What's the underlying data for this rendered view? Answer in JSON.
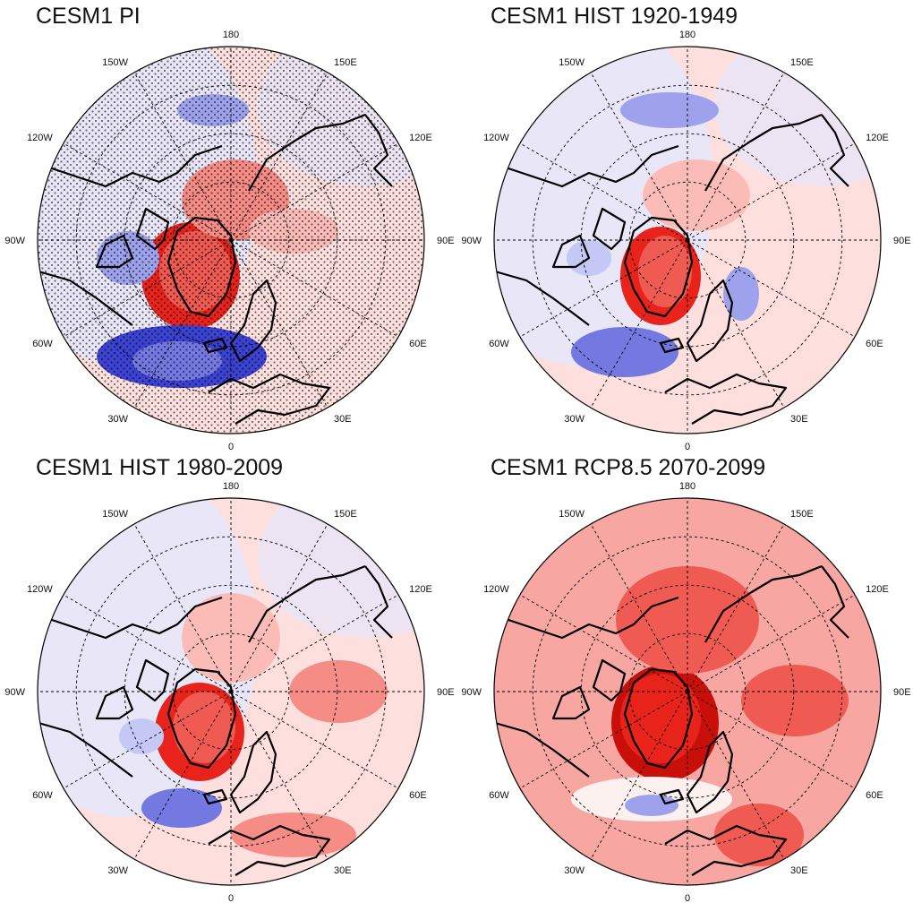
{
  "panels": [
    {
      "title": "CESM1 PI",
      "stippled": true,
      "anomalies": [
        {
          "kind": "pos",
          "level": 4,
          "cx": -45,
          "cy": 40,
          "rx": 55,
          "ry": 60
        },
        {
          "kind": "pos",
          "level": 3,
          "cx": -40,
          "cy": 35,
          "rx": 40,
          "ry": 45
        },
        {
          "kind": "pos",
          "level": 2,
          "cx": 5,
          "cy": -45,
          "rx": 60,
          "ry": 45
        },
        {
          "kind": "pos",
          "level": 1,
          "cx": 70,
          "cy": -10,
          "rx": 50,
          "ry": 25
        },
        {
          "kind": "neg",
          "level": 4,
          "cx": -55,
          "cy": 130,
          "rx": 95,
          "ry": 35
        },
        {
          "kind": "neg",
          "level": 3,
          "cx": -60,
          "cy": 135,
          "rx": 50,
          "ry": 22
        },
        {
          "kind": "neg",
          "level": 2,
          "cx": -115,
          "cy": 20,
          "rx": 35,
          "ry": 30
        },
        {
          "kind": "neg",
          "level": 2,
          "cx": -20,
          "cy": -145,
          "rx": 40,
          "ry": 18
        }
      ]
    },
    {
      "title": "CESM1 HIST 1920-1949",
      "stippled": false,
      "anomalies": [
        {
          "kind": "pos",
          "level": 4,
          "cx": -30,
          "cy": 40,
          "rx": 45,
          "ry": 55
        },
        {
          "kind": "pos",
          "level": 3,
          "cx": -25,
          "cy": 35,
          "rx": 30,
          "ry": 40
        },
        {
          "kind": "pos",
          "level": 1,
          "cx": 10,
          "cy": -50,
          "rx": 60,
          "ry": 40
        },
        {
          "kind": "neg",
          "level": 3,
          "cx": -70,
          "cy": 125,
          "rx": 60,
          "ry": 28
        },
        {
          "kind": "neg",
          "level": 2,
          "cx": -20,
          "cy": -145,
          "rx": 55,
          "ry": 20
        },
        {
          "kind": "neg",
          "level": 2,
          "cx": 60,
          "cy": 60,
          "rx": 20,
          "ry": 30
        },
        {
          "kind": "neg",
          "level": 1,
          "cx": -110,
          "cy": 20,
          "rx": 25,
          "ry": 20
        }
      ]
    },
    {
      "title": "CESM1 HIST 1980-2009",
      "stippled": false,
      "anomalies": [
        {
          "kind": "pos",
          "level": 4,
          "cx": -35,
          "cy": 45,
          "rx": 50,
          "ry": 55
        },
        {
          "kind": "pos",
          "level": 3,
          "cx": -30,
          "cy": 40,
          "rx": 35,
          "ry": 40
        },
        {
          "kind": "pos",
          "level": 2,
          "cx": 120,
          "cy": 0,
          "rx": 55,
          "ry": 35
        },
        {
          "kind": "pos",
          "level": 2,
          "cx": 70,
          "cy": 160,
          "rx": 70,
          "ry": 25
        },
        {
          "kind": "pos",
          "level": 1,
          "cx": 0,
          "cy": -60,
          "rx": 55,
          "ry": 50
        },
        {
          "kind": "neg",
          "level": 3,
          "cx": -55,
          "cy": 130,
          "rx": 45,
          "ry": 22
        },
        {
          "kind": "neg",
          "level": 1,
          "cx": -100,
          "cy": 50,
          "rx": 25,
          "ry": 20
        }
      ]
    },
    {
      "title": "CESM1 RCP8.5 2070-2099",
      "stippled": false,
      "anomalies": [
        {
          "kind": "pos",
          "level": 5,
          "cx": -25,
          "cy": 35,
          "rx": 60,
          "ry": 65
        },
        {
          "kind": "pos",
          "level": 4,
          "cx": -30,
          "cy": 30,
          "rx": 45,
          "ry": 50
        },
        {
          "kind": "pos",
          "level": 3,
          "cx": 0,
          "cy": -80,
          "rx": 80,
          "ry": 60
        },
        {
          "kind": "pos",
          "level": 3,
          "cx": 120,
          "cy": 10,
          "rx": 60,
          "ry": 40
        },
        {
          "kind": "pos",
          "level": 3,
          "cx": 80,
          "cy": 160,
          "rx": 50,
          "ry": 35
        },
        {
          "kind": "neutral",
          "level": 1,
          "cx": -40,
          "cy": 120,
          "rx": 90,
          "ry": 25
        },
        {
          "kind": "neg",
          "level": 2,
          "cx": -40,
          "cy": 127,
          "rx": 30,
          "ry": 12
        }
      ]
    }
  ],
  "meridian_labels": [
    {
      "text": "180",
      "angle": 180
    },
    {
      "text": "150E",
      "angle": 150
    },
    {
      "text": "120E",
      "angle": 120
    },
    {
      "text": "90E",
      "angle": 90
    },
    {
      "text": "60E",
      "angle": 60
    },
    {
      "text": "30E",
      "angle": 30
    },
    {
      "text": "0",
      "angle": 0
    },
    {
      "text": "30W",
      "angle": -30
    },
    {
      "text": "60W",
      "angle": -60
    },
    {
      "text": "90W",
      "angle": -90
    },
    {
      "text": "120W",
      "angle": -120
    },
    {
      "text": "150W",
      "angle": -150
    }
  ],
  "colors": {
    "background_pos": "#fde0de",
    "background_neg": "#e4e6fb",
    "pos_levels": [
      "#fde0de",
      "#fbbcb8",
      "#f58c86",
      "#ef5a52",
      "#e8231b",
      "#c90f0a"
    ],
    "neg_levels": [
      "#e4e6fb",
      "#c5c8f4",
      "#9ea2ec",
      "#7479e2",
      "#3c42d2"
    ],
    "rcp_background": "#f7a6a1",
    "coast": "#000000",
    "grid": "#000000"
  }
}
